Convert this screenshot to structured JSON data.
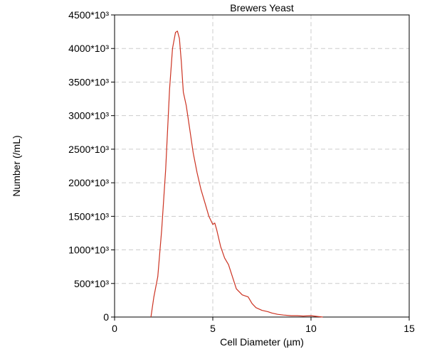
{
  "chart_data": {
    "type": "line",
    "title": "Brewers Yeast",
    "xlabel": "Cell Diameter (µm)",
    "ylabel": "Number (/mL)",
    "xlim": [
      0,
      15
    ],
    "ylim": [
      0,
      4500
    ],
    "x_ticks": [
      0,
      5,
      10,
      15
    ],
    "x_tick_labels": [
      "0",
      "5",
      "10",
      "15"
    ],
    "y_ticks": [
      0,
      500,
      1000,
      1500,
      2000,
      2500,
      3000,
      3500,
      4000,
      4500
    ],
    "y_tick_labels": [
      "0",
      "500*10³",
      "1000*10³",
      "1500*10³",
      "2000*10³",
      "2500*10³",
      "3000*10³",
      "3500*10³",
      "4000*10³",
      "4500*10³"
    ],
    "grid": true,
    "series": [
      {
        "color": "#cc3322",
        "x": [
          1.85,
          2.0,
          2.2,
          2.4,
          2.6,
          2.8,
          2.95,
          3.1,
          3.2,
          3.3,
          3.4,
          3.5,
          3.65,
          3.8,
          4.0,
          4.2,
          4.4,
          4.6,
          4.8,
          5.0,
          5.1,
          5.2,
          5.4,
          5.6,
          5.8,
          6.0,
          6.2,
          6.5,
          6.8,
          7.0,
          7.2,
          7.5,
          7.8,
          8.0,
          8.3,
          8.6,
          9.0,
          9.3,
          9.6,
          10.0,
          10.3,
          10.6
        ],
        "y": [
          0,
          300,
          600,
          1300,
          2200,
          3400,
          4000,
          4240,
          4260,
          4150,
          3800,
          3350,
          3150,
          2850,
          2450,
          2150,
          1900,
          1700,
          1500,
          1380,
          1400,
          1300,
          1050,
          880,
          780,
          600,
          420,
          330,
          300,
          200,
          140,
          100,
          80,
          60,
          40,
          30,
          20,
          20,
          15,
          20,
          10,
          0
        ]
      }
    ]
  }
}
